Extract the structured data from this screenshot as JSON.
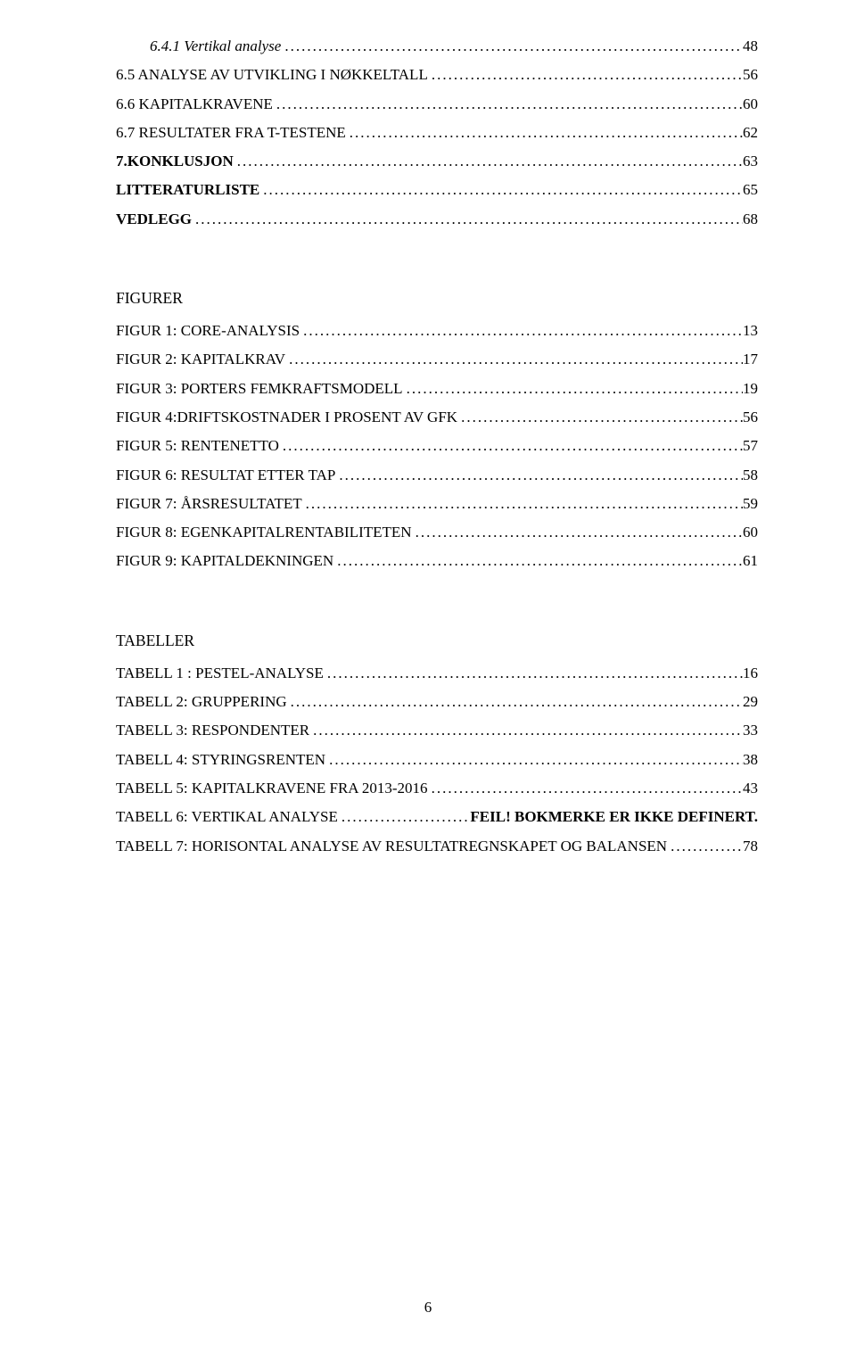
{
  "top": [
    {
      "label": "6.4.1 Vertikal analyse",
      "page": "48",
      "indent": 1,
      "italic": true
    },
    {
      "label": "6.5 ANALYSE AV UTVIKLING I NØKKELTALL",
      "page": "56",
      "indent": 0,
      "smallcaps": true
    },
    {
      "label": "6.6 KAPITALKRAVENE",
      "page": "60",
      "indent": 0,
      "smallcaps": true
    },
    {
      "label": "6.7 RESULTATER FRA T-TESTENE",
      "page": "62",
      "indent": 0,
      "smallcaps": true
    },
    {
      "label": "7.KONKLUSJON",
      "page": "63",
      "indent": 0,
      "bold": true
    },
    {
      "label": "LITTERATURLISTE",
      "page": "65",
      "indent": 0,
      "bold": true
    },
    {
      "label": "VEDLEGG",
      "page": "68",
      "indent": 0,
      "bold": true
    }
  ],
  "figures_heading": "FIGURER",
  "figures": [
    {
      "label": "FIGUR 1: CORE-ANALYSIS",
      "page": "13",
      "smallcaps": true
    },
    {
      "label": "FIGUR 2: KAPITALKRAV",
      "page": "17",
      "smallcaps": true
    },
    {
      "label": "FIGUR 3: PORTERS FEMKRAFTSMODELL",
      "page": "19",
      "smallcaps": true
    },
    {
      "label": "FIGUR 4:DRIFTSKOSTNADER I PROSENT AV GFK",
      "page": "56",
      "smallcaps": true
    },
    {
      "label": "FIGUR 5: RENTENETTO",
      "page": "57",
      "smallcaps": true
    },
    {
      "label": "FIGUR 6: RESULTAT ETTER TAP",
      "page": "58",
      "smallcaps": true
    },
    {
      "label": "FIGUR 7: ÅRSRESULTATET",
      "page": "59",
      "smallcaps": true
    },
    {
      "label": "FIGUR 8: EGENKAPITALRENTABILITETEN",
      "page": "60",
      "smallcaps": true
    },
    {
      "label": "FIGUR 9: KAPITALDEKNINGEN",
      "page": "61",
      "smallcaps": true
    }
  ],
  "tables_heading": "TABELLER",
  "tables": [
    {
      "label": "TABELL 1 : PESTEL-ANALYSE",
      "page": "16",
      "smallcaps": true
    },
    {
      "label": "TABELL 2: GRUPPERING",
      "page": "29",
      "smallcaps": true
    },
    {
      "label": "TABELL 3: RESPONDENTER",
      "page": "33",
      "smallcaps": true
    },
    {
      "label": "TABELL 4: STYRINGSRENTEN",
      "page": "38",
      "smallcaps": true
    },
    {
      "label": "TABELL 5: KAPITALKRAVENE FRA 2013-2016",
      "page": "43",
      "smallcaps": true
    },
    {
      "label": "TABELL 6: VERTIKAL ANALYSE",
      "page": "FEIL! BOKMERKE ER IKKE DEFINERT.",
      "smallcaps": true,
      "pagebold": true
    },
    {
      "label": "TABELL 7: HORISONTAL ANALYSE AV RESULTATREGNSKAPET OG BALANSEN",
      "page": "78",
      "smallcaps": true
    }
  ],
  "page_number": "6"
}
